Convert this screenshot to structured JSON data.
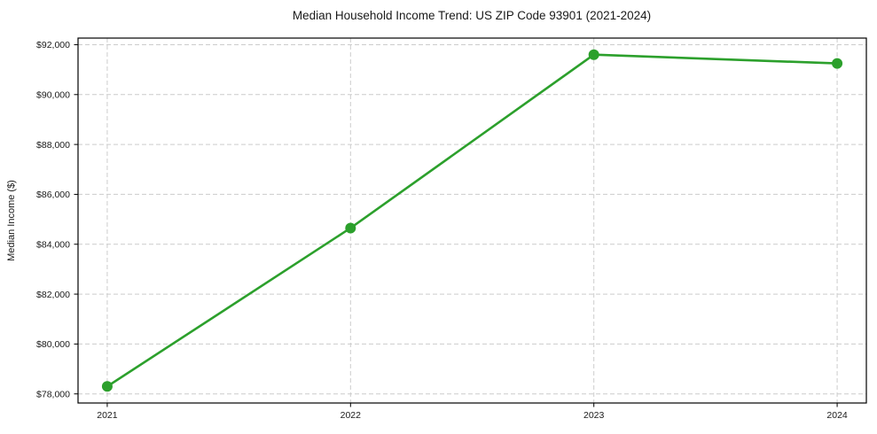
{
  "chart_data": {
    "type": "line",
    "title": "Median Household Income Trend: US ZIP Code 93901 (2021-2024)",
    "ylabel": "Median Income ($)",
    "xlabel": "",
    "x": [
      2021,
      2022,
      2023,
      2024
    ],
    "x_tick_labels": [
      "2021",
      "2022",
      "2023",
      "2024"
    ],
    "series": [
      {
        "name": "Median Household Income",
        "values": [
          78300,
          84650,
          91600,
          91250
        ]
      }
    ],
    "y_ticks": [
      {
        "value": 78000,
        "label": "$78,000"
      },
      {
        "value": 80000,
        "label": "$80,000"
      },
      {
        "value": 82000,
        "label": "$82,000"
      },
      {
        "value": 84000,
        "label": "$84,000"
      },
      {
        "value": 86000,
        "label": "$86,000"
      },
      {
        "value": 88000,
        "label": "$88,000"
      },
      {
        "value": 90000,
        "label": "$90,000"
      },
      {
        "value": 92000,
        "label": "$92,000"
      }
    ],
    "ylim": [
      77635,
      92265
    ],
    "xlim": [
      2020.88,
      2024.12
    ],
    "grid": true,
    "grid_style": "dashed",
    "legend": "none",
    "colors": {
      "line": "#2ca02c",
      "marker": "#2ca02c",
      "grid": "#cccccc",
      "spine": "#000000",
      "text": "#1a1a1a",
      "background": "#ffffff"
    }
  }
}
